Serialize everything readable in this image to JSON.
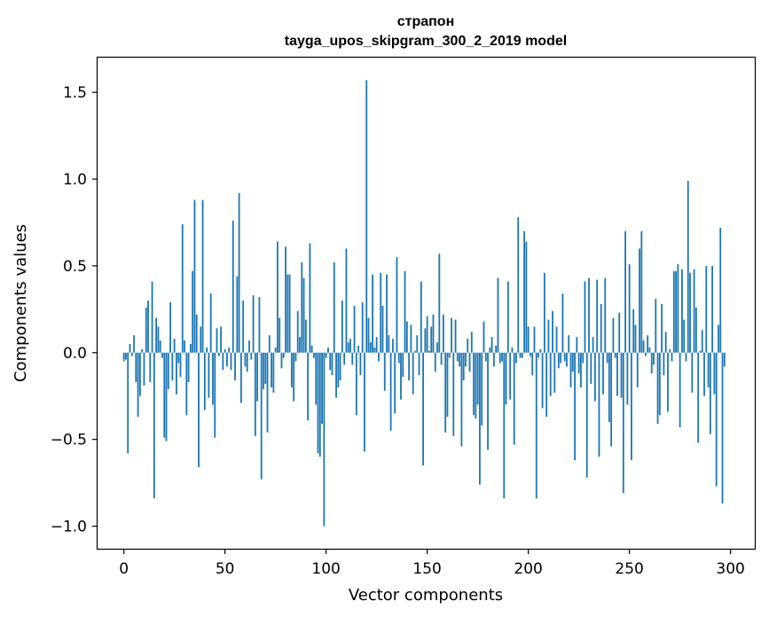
{
  "chart_data": {
    "type": "bar",
    "title": "страпон",
    "subtitle": "tayga_upos_skipgram_300_2_2019 model",
    "xlabel": "Vector components",
    "ylabel": "Components values",
    "xlim": [
      -13,
      312
    ],
    "ylim": [
      -1.13,
      1.7
    ],
    "xticks": [
      0,
      50,
      100,
      150,
      200,
      250,
      300
    ],
    "yticks": [
      -1.0,
      -0.5,
      0.0,
      0.5,
      1.0,
      1.5
    ],
    "ytick_labels": [
      "−1.0",
      "−0.5",
      "0.0",
      "0.5",
      "1.0",
      "1.5"
    ],
    "bar_color": "#1f77b4",
    "values": [
      -0.05,
      -0.04,
      -0.58,
      0.05,
      -0.02,
      0.1,
      -0.17,
      -0.37,
      -0.25,
      0.02,
      -0.19,
      0.26,
      0.3,
      -0.17,
      0.41,
      -0.84,
      0.2,
      0.15,
      0.07,
      -0.03,
      -0.49,
      -0.51,
      -0.21,
      0.29,
      -0.16,
      0.08,
      -0.24,
      -0.06,
      -0.14,
      0.74,
      0.07,
      -0.36,
      -0.17,
      0.05,
      0.47,
      0.88,
      0.22,
      -0.66,
      0.15,
      0.88,
      -0.33,
      0.03,
      -0.26,
      0.34,
      -0.3,
      -0.49,
      0.14,
      -0.02,
      0.15,
      -0.1,
      0.02,
      -0.08,
      0.03,
      -0.1,
      0.76,
      -0.16,
      0.44,
      0.92,
      -0.29,
      0.3,
      -0.08,
      -0.11,
      0.07,
      -0.04,
      0.33,
      -0.48,
      -0.28,
      0.32,
      -0.73,
      -0.21,
      -0.18,
      -0.46,
      0.1,
      -0.2,
      -0.23,
      0.03,
      0.64,
      0.2,
      -0.09,
      -0.03,
      0.61,
      0.45,
      0.45,
      -0.2,
      -0.28,
      -0.05,
      0.24,
      0.09,
      0.52,
      0.43,
      0.19,
      -0.39,
      0.63,
      0.04,
      -0.03,
      -0.3,
      -0.58,
      -0.6,
      -0.41,
      -1.0,
      -0.03,
      0.03,
      -0.1,
      -0.13,
      0.52,
      -0.26,
      -0.2,
      -0.16,
      0.3,
      -0.07,
      0.6,
      0.06,
      0.08,
      -0.07,
      0.27,
      -0.36,
      0.04,
      -0.13,
      0.29,
      -0.57,
      1.57,
      0.2,
      0.06,
      0.45,
      0.03,
      0.09,
      -0.05,
      0.46,
      0.27,
      -0.22,
      0.45,
      0.1,
      -0.45,
      0.08,
      -0.35,
      0.55,
      -0.06,
      -0.27,
      -0.14,
      0.47,
      0.18,
      -0.16,
      0.16,
      -0.24,
      0.01,
      0.1,
      -0.13,
      0.41,
      -0.65,
      0.14,
      0.21,
      0.01,
      0.15,
      0.22,
      -0.11,
      0.06,
      0.57,
      -0.07,
      0.22,
      -0.46,
      -0.37,
      -0.03,
      0.2,
      -0.48,
      0.19,
      -0.05,
      -0.08,
      -0.54,
      -0.16,
      -0.08,
      0.08,
      -0.11,
      0.12,
      -0.36,
      -0.38,
      -0.3,
      -0.76,
      -0.42,
      0.18,
      -0.05,
      -0.56,
      0.03,
      0.09,
      -0.08,
      0.04,
      0.43,
      -0.06,
      -0.05,
      -0.84,
      -0.3,
      0.41,
      -0.27,
      0.03,
      -0.53,
      -0.06,
      0.78,
      -0.03,
      -0.03,
      0.7,
      0.64,
      0.15,
      -0.02,
      -0.13,
      0.15,
      -0.84,
      -0.03,
      0.02,
      -0.32,
      0.46,
      -0.37,
      0.19,
      -0.25,
      0.24,
      -0.23,
      0.15,
      -0.09,
      -0.06,
      0.34,
      -0.05,
      -0.08,
      0.1,
      -0.2,
      -0.11,
      -0.62,
      0.09,
      -0.12,
      -0.2,
      -0.06,
      0.41,
      -0.72,
      0.43,
      -0.18,
      0.09,
      -0.28,
      0.42,
      -0.6,
      0.28,
      -0.24,
      0.43,
      -0.06,
      -0.4,
      -0.54,
      0.2,
      -0.03,
      -0.25,
      0.23,
      -0.26,
      -0.81,
      0.7,
      -0.3,
      0.51,
      -0.62,
      0.25,
      0.16,
      -0.2,
      0.6,
      0.7,
      0.07,
      -0.02,
      0.1,
      0.03,
      -0.12,
      -0.07,
      0.31,
      -0.41,
      -0.36,
      0.28,
      -0.13,
      0.12,
      -0.34,
      0.02,
      -0.05,
      0.47,
      0.47,
      0.51,
      -0.43,
      0.48,
      0.19,
      -0.05,
      0.99,
      0.46,
      -0.23,
      0.48,
      0.26,
      -0.52,
      0.01,
      0.13,
      -0.25,
      0.5,
      -0.2,
      -0.47,
      0.5,
      -0.24,
      -0.77,
      0.16,
      0.72,
      -0.87,
      -0.08
    ]
  }
}
